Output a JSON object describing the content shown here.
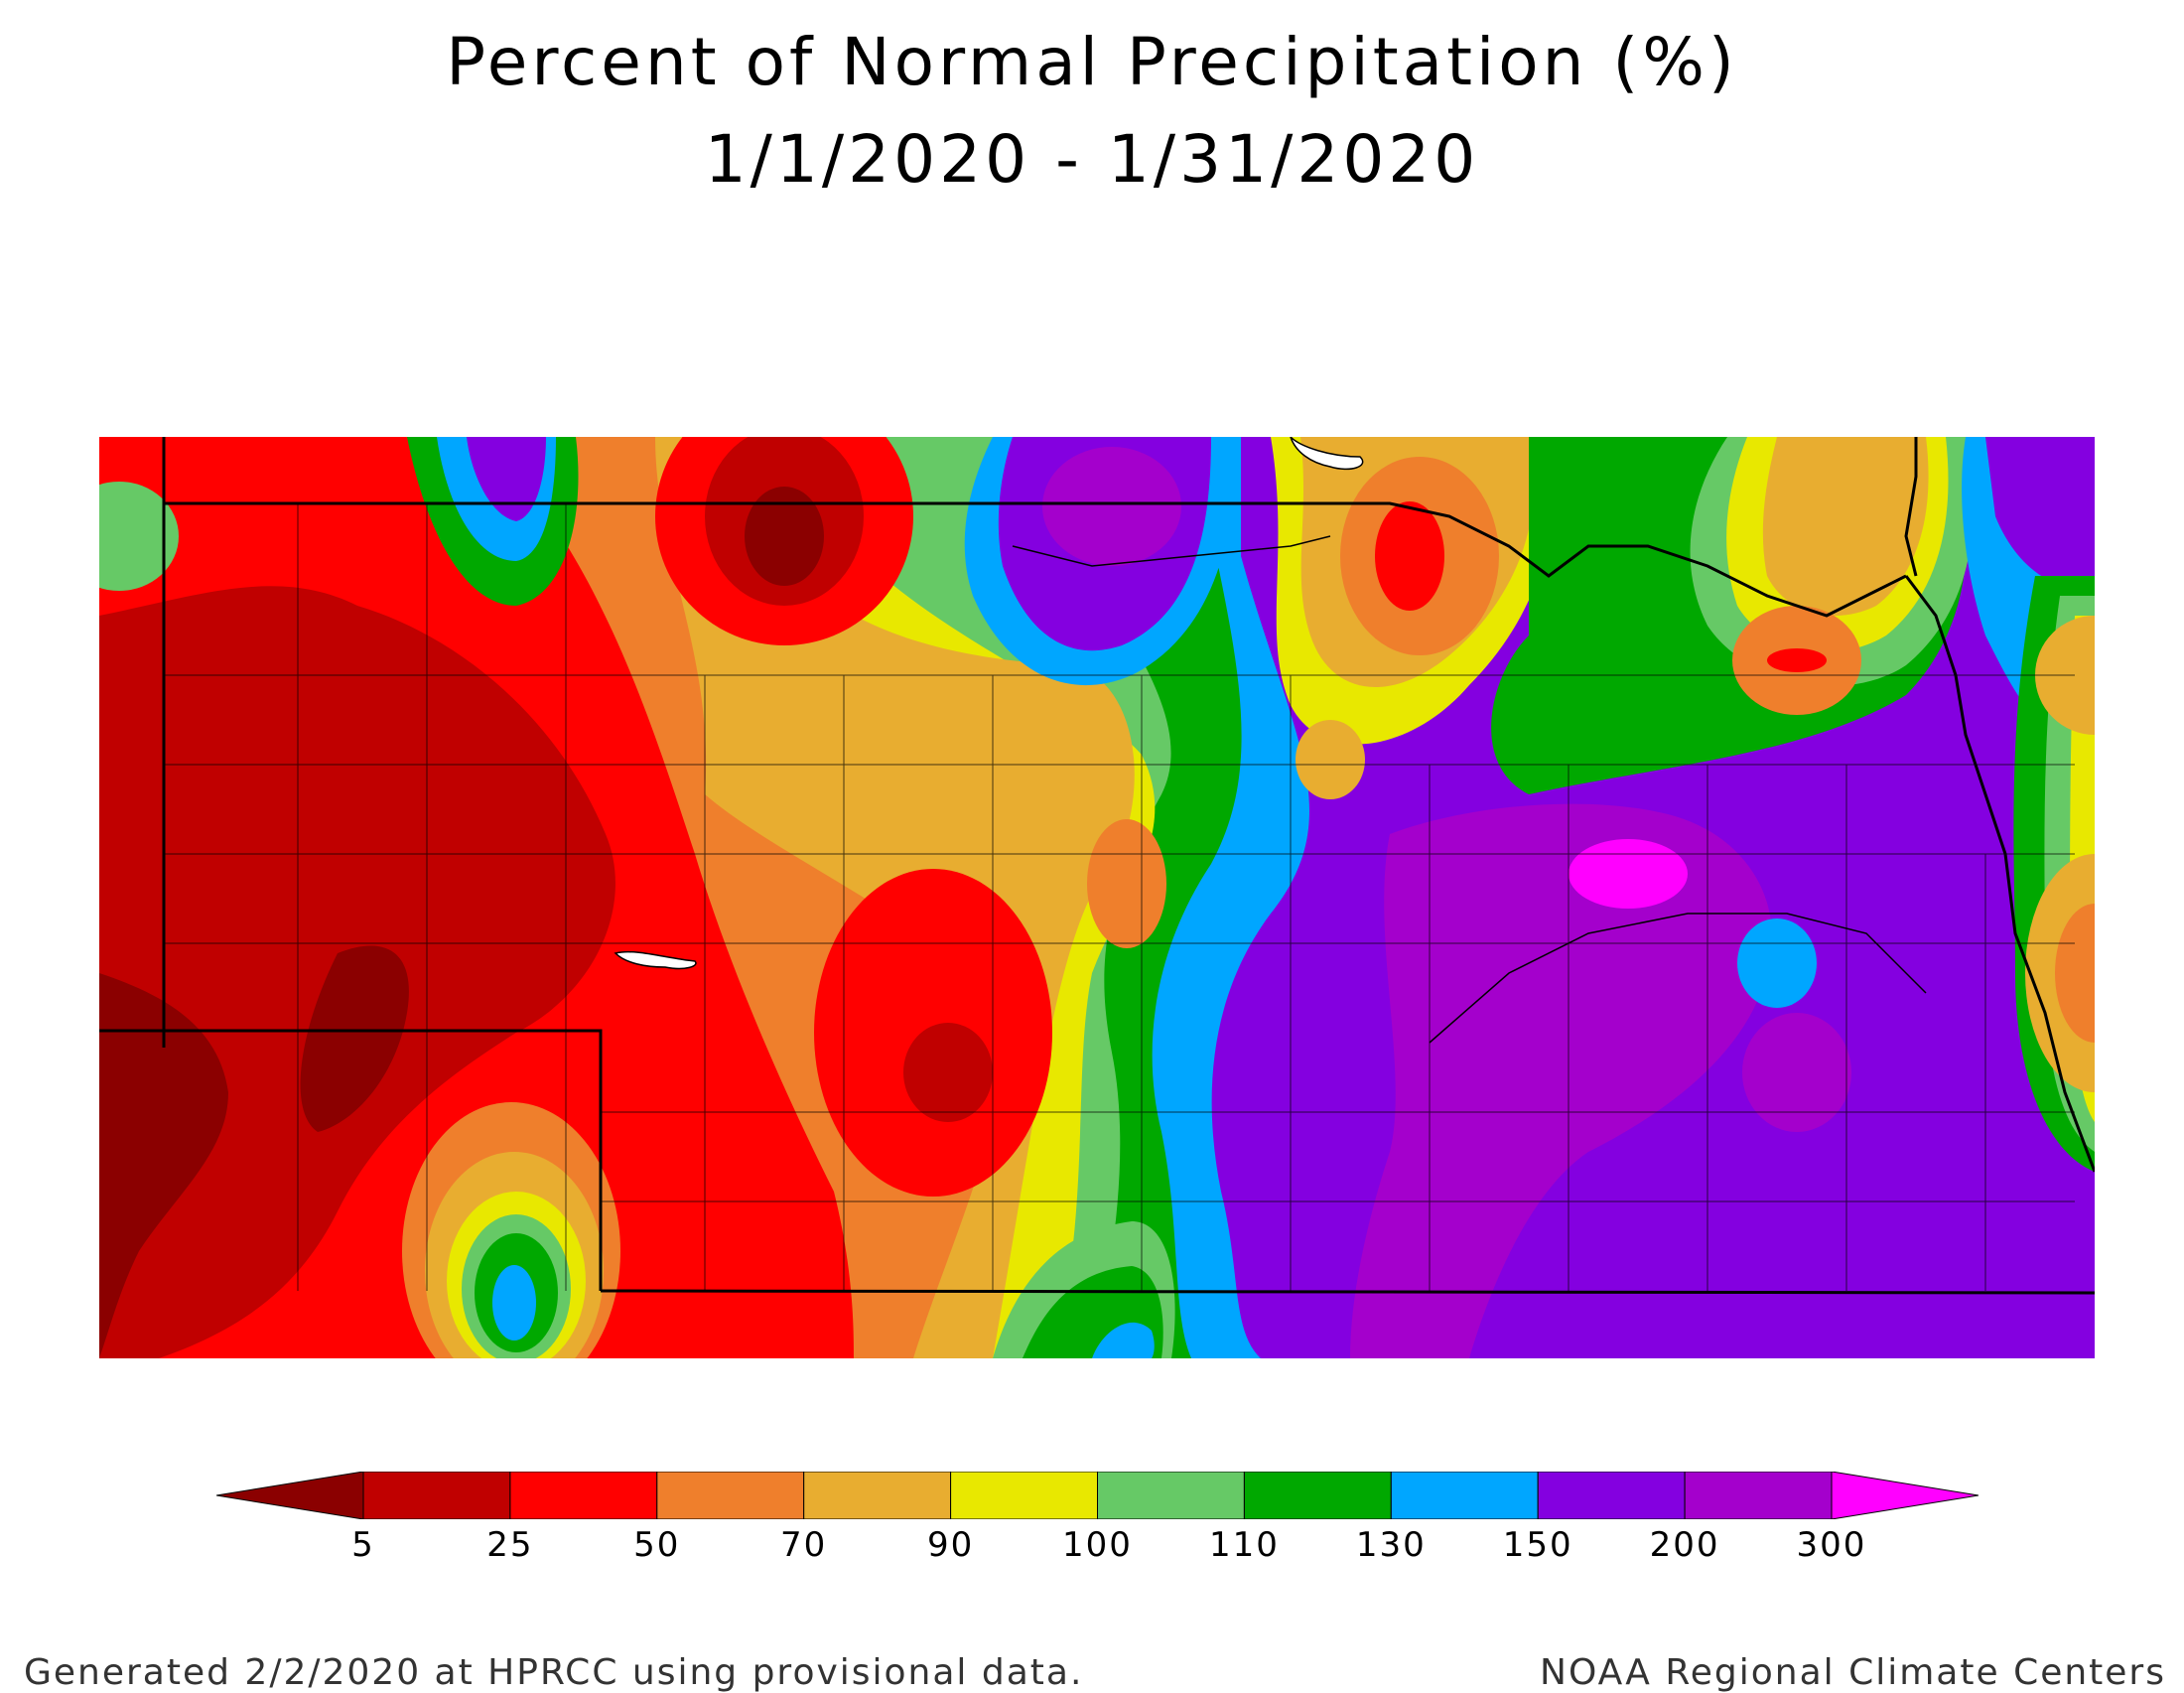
{
  "title": {
    "line1": "Percent of Normal Precipitation (%)",
    "line2": "1/1/2020 - 1/31/2020"
  },
  "legend": {
    "ticks": [
      "5",
      "25",
      "50",
      "70",
      "90",
      "100",
      "110",
      "130",
      "150",
      "200",
      "300"
    ],
    "colors": [
      "#8b0000",
      "#c00000",
      "#ff0000",
      "#ef7f2c",
      "#e8ad30",
      "#e8e800",
      "#66c966",
      "#00a800",
      "#00a6ff",
      "#8400e0",
      "#a400cc",
      "#ff00ff"
    ]
  },
  "footer": {
    "left": "Generated 2/2/2020 at HPRCC using provisional data.",
    "right": "NOAA Regional Climate Centers"
  }
}
